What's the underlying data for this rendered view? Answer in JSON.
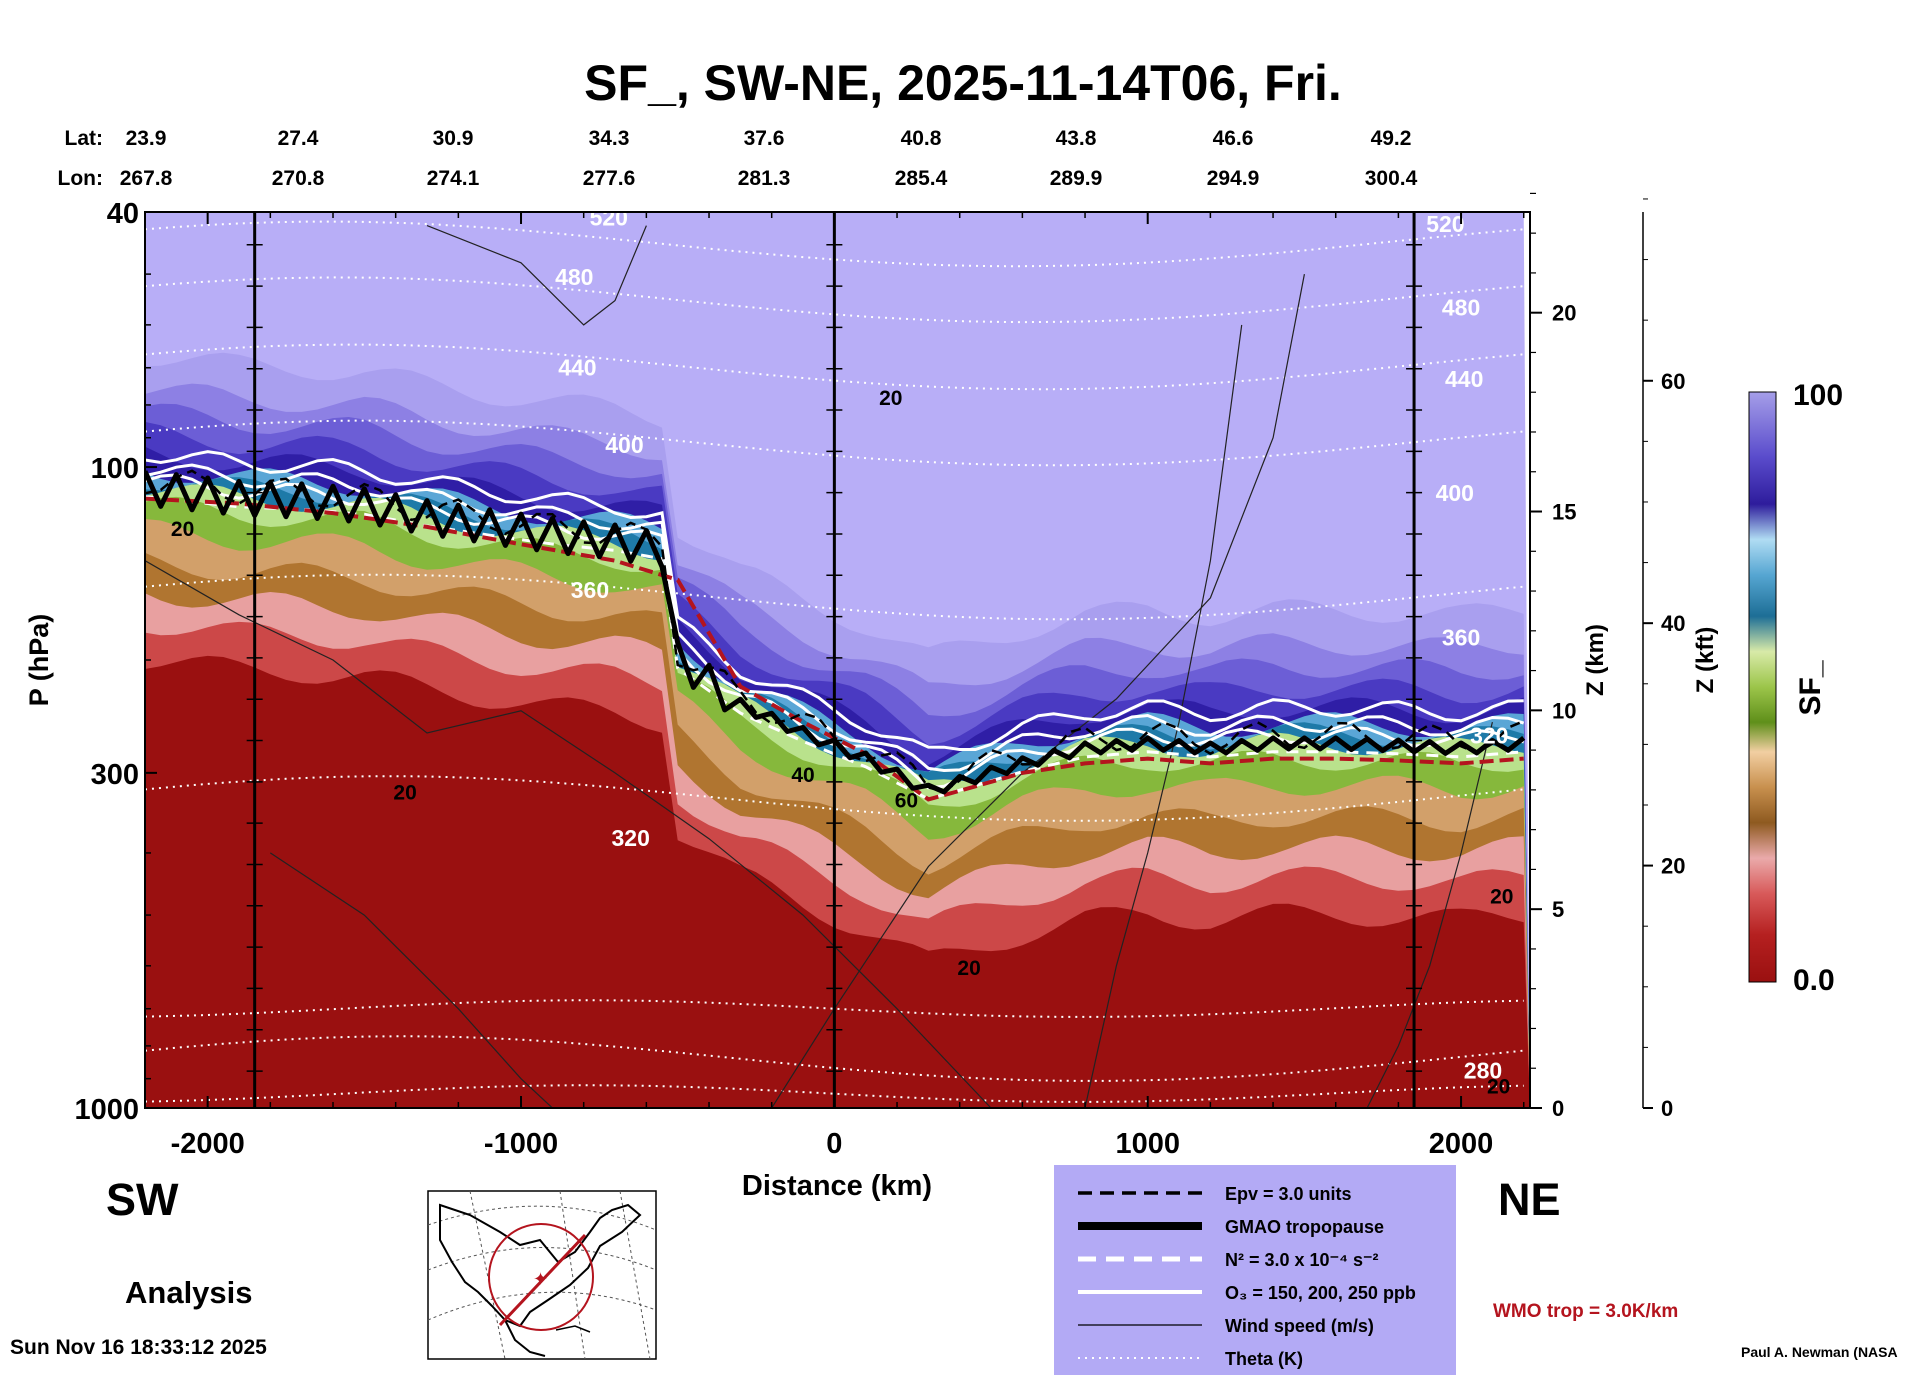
{
  "title": "SF_, SW-NE, 2025-11-14T06, Fri.",
  "lat_label": "Lat:",
  "lon_label": "Lon:",
  "lats": [
    "23.9",
    "27.4",
    "30.9",
    "34.3",
    "37.6",
    "40.8",
    "43.8",
    "46.6",
    "49.2"
  ],
  "lons": [
    "267.8",
    "270.8",
    "274.1",
    "277.6",
    "281.3",
    "285.4",
    "289.9",
    "294.9",
    "300.4"
  ],
  "left_label": "SW",
  "right_label": "NE",
  "analysis_label": "Analysis",
  "timestamp": "Sun Nov 16 18:33:12 2025",
  "author": "Paul A. Newman (NASA",
  "wmo_label": "WMO trop = 3.0K/km",
  "legend": [
    {
      "label": "Epv = 3.0 units",
      "style": "black-dashed"
    },
    {
      "label": "GMAO tropopause",
      "style": "black-thick"
    },
    {
      "label": "N² = 3.0 x 10⁻⁴ s⁻²",
      "style": "white-dashed"
    },
    {
      "label": "O₃ = 150, 200, 250 ppb",
      "style": "white-solid"
    },
    {
      "label": "Wind speed (m/s)",
      "style": "black-thin"
    },
    {
      "label": "Theta (K)",
      "style": "white-dotted"
    }
  ],
  "colors": {
    "legend_bg": "#b3aaf5",
    "wmo": "#b4141e",
    "red_base": "#9a1010"
  },
  "chart_data": {
    "type": "heatmap",
    "title": "SF_, SW-NE, 2025-11-14T06, Fri.",
    "xlabel": "Distance (km)",
    "ylabel": "P (hPa)",
    "y2label": "Z (km)",
    "y3label": "Z (kft)",
    "colorbar_label": "SF_",
    "colorbar_range": [
      "0.0",
      "100"
    ],
    "xlim": [
      -2200,
      2220
    ],
    "ylim_hpa": [
      1000,
      40
    ],
    "y_scale": "log",
    "x_ticks": [
      -2000,
      -1000,
      0,
      1000,
      2000
    ],
    "x_tick_labels": [
      "-2000",
      "-1000",
      "0",
      "1000",
      "2000"
    ],
    "y_ticks": [
      40,
      100,
      300,
      1000
    ],
    "y_tick_labels": [
      "40",
      "100",
      "300",
      "1000"
    ],
    "z_km_ticks": [
      0,
      5,
      10,
      15,
      20
    ],
    "z_km_tick_labels": [
      "0",
      "5",
      "10",
      "15",
      "20"
    ],
    "z_kft_ticks": [
      0,
      20,
      40,
      60
    ],
    "z_kft_tick_labels": [
      "0",
      "20",
      "40",
      "60"
    ],
    "vertical_lines_km": [
      -1850,
      0,
      1850
    ],
    "theta_labels": [
      {
        "text": "520",
        "x": -720,
        "p": 42
      },
      {
        "text": "480",
        "x": -830,
        "p": 52
      },
      {
        "text": "440",
        "x": -820,
        "p": 72
      },
      {
        "text": "400",
        "x": -670,
        "p": 95
      },
      {
        "text": "360",
        "x": -780,
        "p": 160
      },
      {
        "text": "320",
        "x": -650,
        "p": 390
      },
      {
        "text": "520",
        "x": 1950,
        "p": 43
      },
      {
        "text": "480",
        "x": 2000,
        "p": 58
      },
      {
        "text": "440",
        "x": 2010,
        "p": 75
      },
      {
        "text": "400",
        "x": 1980,
        "p": 113
      },
      {
        "text": "360",
        "x": 2000,
        "p": 190
      },
      {
        "text": "320",
        "x": 2090,
        "p": 270
      },
      {
        "text": "280",
        "x": 2070,
        "p": 900
      }
    ],
    "wind_labels": [
      {
        "text": "20",
        "x": 180,
        "p": 80
      },
      {
        "text": "20",
        "x": -2080,
        "p": 128
      },
      {
        "text": "20",
        "x": -1370,
        "p": 330
      },
      {
        "text": "40",
        "x": -100,
        "p": 310
      },
      {
        "text": "60",
        "x": 230,
        "p": 340
      },
      {
        "text": "20",
        "x": 430,
        "p": 620
      },
      {
        "text": "20",
        "x": 2120,
        "p": 950
      },
      {
        "text": "20",
        "x": 2130,
        "p": 480
      }
    ],
    "tropopause_p_hpa": {
      "x": [
        -2200,
        -1900,
        -1700,
        -1500,
        -1300,
        -1100,
        -900,
        -700,
        -550,
        -500,
        -300,
        -100,
        100,
        300,
        400,
        600,
        800,
        1000,
        1200,
        1400,
        1600,
        1800,
        2000,
        2200
      ],
      "p": [
        108,
        112,
        113,
        115,
        120,
        124,
        128,
        131,
        135,
        200,
        235,
        260,
        285,
        320,
        310,
        290,
        275,
        270,
        275,
        270,
        270,
        272,
        275,
        270
      ]
    },
    "wmo_trop_p_hpa": {
      "x": [
        -2200,
        -1900,
        -1600,
        -1300,
        -1000,
        -700,
        -500,
        -300,
        -100,
        100,
        300,
        400,
        600,
        800,
        1000,
        1200,
        1400,
        1600,
        1800,
        2000,
        2200
      ],
      "p": [
        112,
        114,
        118,
        124,
        132,
        140,
        150,
        220,
        250,
        280,
        330,
        320,
        300,
        290,
        285,
        290,
        285,
        285,
        287,
        290,
        285
      ]
    }
  }
}
